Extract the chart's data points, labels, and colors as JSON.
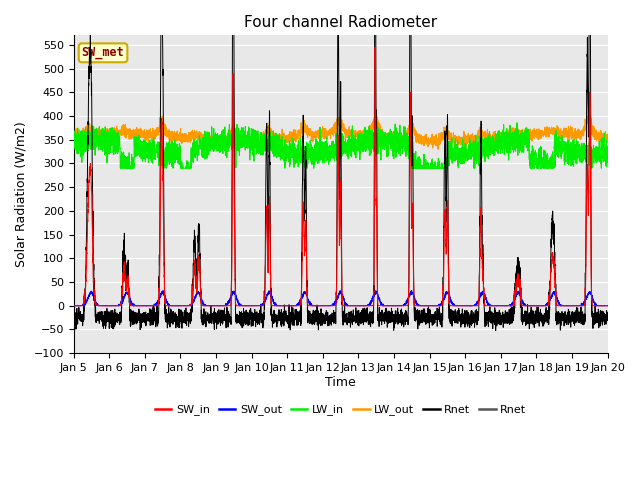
{
  "title": "Four channel Radiometer",
  "xlabel": "Time",
  "ylabel": "Solar Radiation (W/m2)",
  "ylim": [
    -100,
    570
  ],
  "xlim": [
    0,
    15
  ],
  "xtick_labels": [
    "Jan 5",
    "Jan 6",
    "Jan 7",
    "Jan 8",
    "Jan 9",
    "Jan 10",
    "Jan 11",
    "Jan 12",
    "Jan 13",
    "Jan 14",
    "Jan 15",
    "Jan 16",
    "Jan 17",
    "Jan 18",
    "Jan 19",
    "Jan 20"
  ],
  "colors": {
    "SW_in": "#ff0000",
    "SW_out": "#0000ff",
    "LW_in": "#00ee00",
    "LW_out": "#ff9900",
    "Rnet": "#000000"
  },
  "legend_items": [
    "SW_in",
    "SW_out",
    "LW_in",
    "LW_out",
    "Rnet",
    "Rnet"
  ],
  "legend_colors": [
    "#ff0000",
    "#0000ff",
    "#00ee00",
    "#ff9900",
    "#000000",
    "#555555"
  ],
  "annotation_text": "SW_met",
  "annotation_color": "#8b0000",
  "annotation_bg": "#ffffcc",
  "annotation_border": "#ccaa00",
  "background_color": "#e8e8e8",
  "title_fontsize": 11,
  "axis_fontsize": 9
}
